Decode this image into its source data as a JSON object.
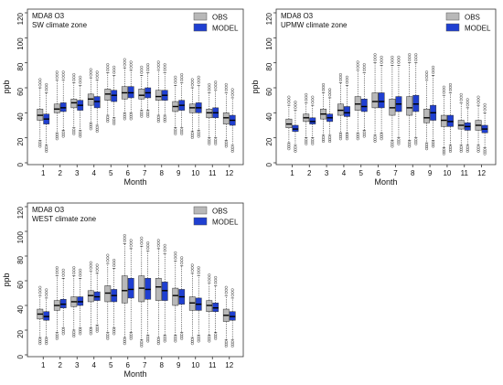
{
  "chart_data": [
    {
      "type": "box",
      "title": "MDA8 O3",
      "subtitle": "SW climate zone",
      "xlabel": "Month",
      "ylabel": "ppb",
      "ylim": [
        0,
        120
      ],
      "yticks": [
        0,
        20,
        40,
        60,
        80,
        100,
        120
      ],
      "categories": [
        "1",
        "2",
        "3",
        "4",
        "5",
        "6",
        "7",
        "8",
        "9",
        "10",
        "11",
        "12"
      ],
      "legend_position": "top-right",
      "series": [
        {
          "name": "OBS",
          "color": "#b8b8b8",
          "median": [
            38,
            43,
            48,
            51,
            55,
            56,
            54,
            53,
            45,
            44,
            40,
            36
          ],
          "q1": [
            34,
            40,
            44,
            46,
            50,
            51,
            51,
            50,
            41,
            40,
            36,
            31
          ],
          "q3": [
            43,
            47,
            51,
            55,
            59,
            61,
            59,
            58,
            49,
            47,
            43,
            40
          ],
          "whisker_low": [
            18,
            24,
            28,
            32,
            38,
            40,
            42,
            38,
            28,
            25,
            20,
            18
          ],
          "whisker_high": [
            60,
            66,
            64,
            68,
            72,
            76,
            70,
            74,
            62,
            60,
            56,
            56
          ]
        },
        {
          "name": "MODEL",
          "color": "#1f3fd1",
          "median": [
            35,
            44,
            46,
            49,
            54,
            56,
            56,
            54,
            46,
            44,
            40,
            34
          ],
          "q1": [
            31,
            41,
            42,
            44,
            49,
            52,
            52,
            50,
            42,
            40,
            36,
            30
          ],
          "q3": [
            39,
            48,
            50,
            53,
            58,
            61,
            60,
            58,
            50,
            48,
            44,
            38
          ],
          "whisker_low": [
            14,
            26,
            26,
            30,
            36,
            40,
            42,
            38,
            28,
            26,
            20,
            14
          ],
          "whisker_high": [
            56,
            66,
            62,
            66,
            70,
            74,
            72,
            72,
            64,
            62,
            58,
            52
          ]
        }
      ]
    },
    {
      "type": "box",
      "title": "MDA8 O3",
      "subtitle": "UPMW climate zone",
      "xlabel": "Month",
      "ylabel": "ppb",
      "ylim": [
        0,
        120
      ],
      "yticks": [
        0,
        20,
        40,
        60,
        80,
        100,
        120
      ],
      "categories": [
        "1",
        "2",
        "3",
        "4",
        "5",
        "6",
        "7",
        "8",
        "9",
        "10",
        "11",
        "12"
      ],
      "legend_position": "top-right",
      "series": [
        {
          "name": "OBS",
          "color": "#b8b8b8",
          "median": [
            31,
            36,
            39,
            42,
            47,
            49,
            44,
            44,
            36,
            34,
            30,
            30
          ],
          "q1": [
            28,
            33,
            35,
            38,
            42,
            44,
            38,
            38,
            32,
            29,
            27,
            26
          ],
          "q3": [
            35,
            39,
            43,
            47,
            53,
            56,
            51,
            53,
            43,
            38,
            34,
            34
          ],
          "whisker_low": [
            16,
            20,
            22,
            24,
            24,
            22,
            18,
            18,
            16,
            12,
            14,
            14
          ],
          "whisker_high": [
            46,
            48,
            56,
            64,
            74,
            80,
            78,
            80,
            66,
            54,
            48,
            46
          ]
        },
        {
          "name": "MODEL",
          "color": "#1f3fd1",
          "median": [
            27,
            33,
            36,
            40,
            45,
            49,
            47,
            47,
            40,
            33,
            29,
            27
          ],
          "q1": [
            25,
            31,
            33,
            37,
            41,
            44,
            41,
            41,
            34,
            29,
            26,
            24
          ],
          "q3": [
            30,
            36,
            39,
            45,
            51,
            56,
            53,
            54,
            46,
            38,
            32,
            30
          ],
          "whisker_low": [
            14,
            20,
            22,
            24,
            26,
            24,
            20,
            20,
            18,
            14,
            14,
            12
          ],
          "whisker_high": [
            42,
            46,
            52,
            62,
            72,
            78,
            78,
            80,
            70,
            56,
            44,
            40
          ]
        }
      ]
    },
    {
      "type": "box",
      "title": "MDA8 O3",
      "subtitle": "WEST climate zone",
      "xlabel": "Month",
      "ylabel": "ppb",
      "ylim": [
        0,
        120
      ],
      "yticks": [
        0,
        20,
        40,
        60,
        80,
        100,
        120
      ],
      "categories": [
        "1",
        "2",
        "3",
        "4",
        "5",
        "6",
        "7",
        "8",
        "9",
        "10",
        "11",
        "12"
      ],
      "legend_position": "top-right",
      "series": [
        {
          "name": "OBS",
          "color": "#b8b8b8",
          "median": [
            33,
            40,
            43,
            48,
            50,
            52,
            54,
            55,
            48,
            42,
            40,
            32
          ],
          "q1": [
            29,
            36,
            39,
            43,
            43,
            42,
            43,
            44,
            40,
            36,
            35,
            27
          ],
          "q3": [
            37,
            44,
            47,
            52,
            56,
            64,
            64,
            62,
            54,
            47,
            44,
            37
          ],
          "whisker_low": [
            14,
            18,
            20,
            22,
            18,
            14,
            12,
            14,
            16,
            14,
            16,
            12
          ],
          "whisker_high": [
            48,
            64,
            64,
            68,
            74,
            90,
            88,
            86,
            76,
            66,
            58,
            48
          ]
        },
        {
          "name": "MODEL",
          "color": "#1f3fd1",
          "median": [
            31,
            41,
            43,
            47,
            48,
            53,
            53,
            52,
            47,
            41,
            38,
            31
          ],
          "q1": [
            28,
            38,
            40,
            44,
            43,
            46,
            45,
            44,
            41,
            36,
            35,
            28
          ],
          "q3": [
            35,
            45,
            47,
            51,
            53,
            62,
            62,
            59,
            53,
            46,
            42,
            35
          ],
          "whisker_low": [
            14,
            22,
            22,
            24,
            22,
            18,
            16,
            16,
            18,
            16,
            18,
            12
          ],
          "whisker_high": [
            46,
            62,
            62,
            66,
            70,
            86,
            84,
            82,
            72,
            64,
            56,
            46
          ]
        }
      ]
    }
  ]
}
